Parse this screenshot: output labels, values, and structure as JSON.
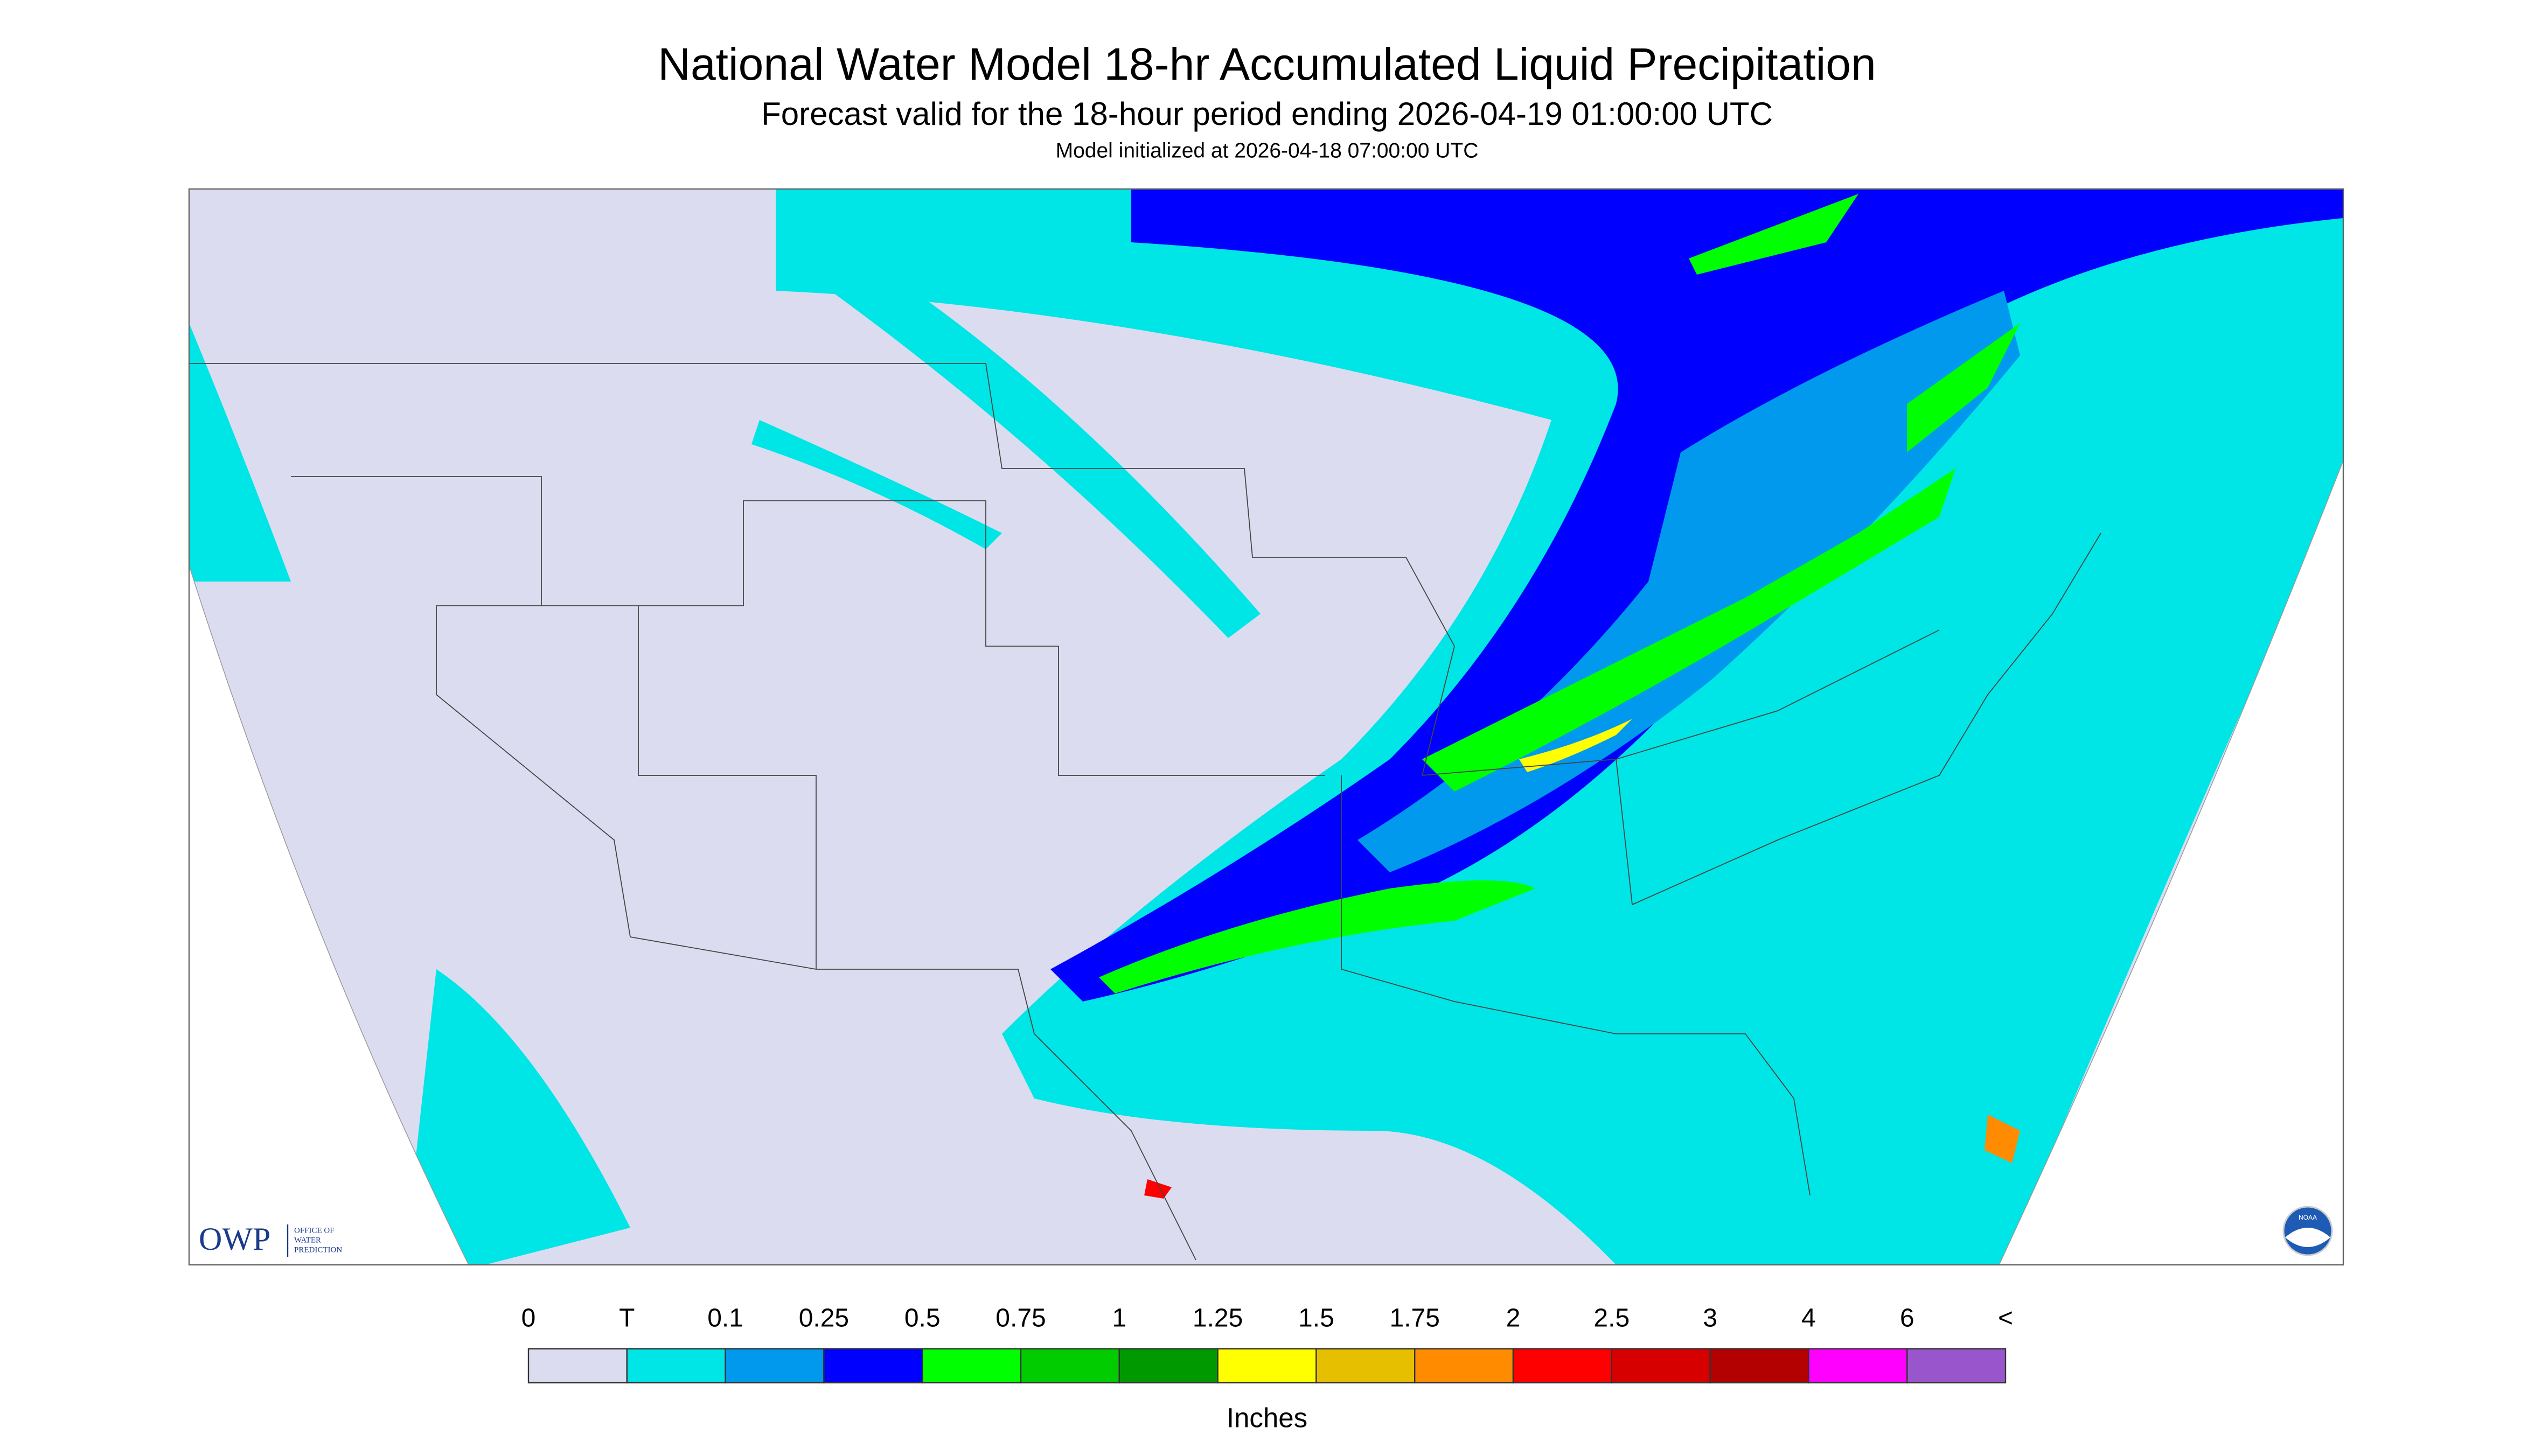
{
  "header": {
    "title": "National Water Model 18-hr Accumulated Liquid Precipitation",
    "subtitle": "Forecast valid for the 18-hour period ending 2026-04-19 01:00:00 UTC",
    "note": "Model initialized at 2026-04-18 07:00:00 UTC"
  },
  "logos": {
    "owp": "OWP",
    "owp_lines": [
      "OFFICE OF",
      "WATER",
      "PREDICTION"
    ],
    "noaa": "NOAA"
  },
  "legend": {
    "labels": [
      "0",
      "T",
      "0.1",
      "0.25",
      "0.5",
      "0.75",
      "1",
      "1.25",
      "1.5",
      "1.75",
      "2",
      "2.5",
      "3",
      "4",
      "6",
      "<"
    ],
    "colors": [
      "#dcdcf0",
      "#00e5e5",
      "#0099ee",
      "#0000ff",
      "#00ff00",
      "#00cc00",
      "#009900",
      "#ffff00",
      "#e6c000",
      "#ff8c00",
      "#ff0000",
      "#d60000",
      "#b30000",
      "#ff00ff",
      "#9955cc"
    ],
    "unit": "Inches"
  }
}
